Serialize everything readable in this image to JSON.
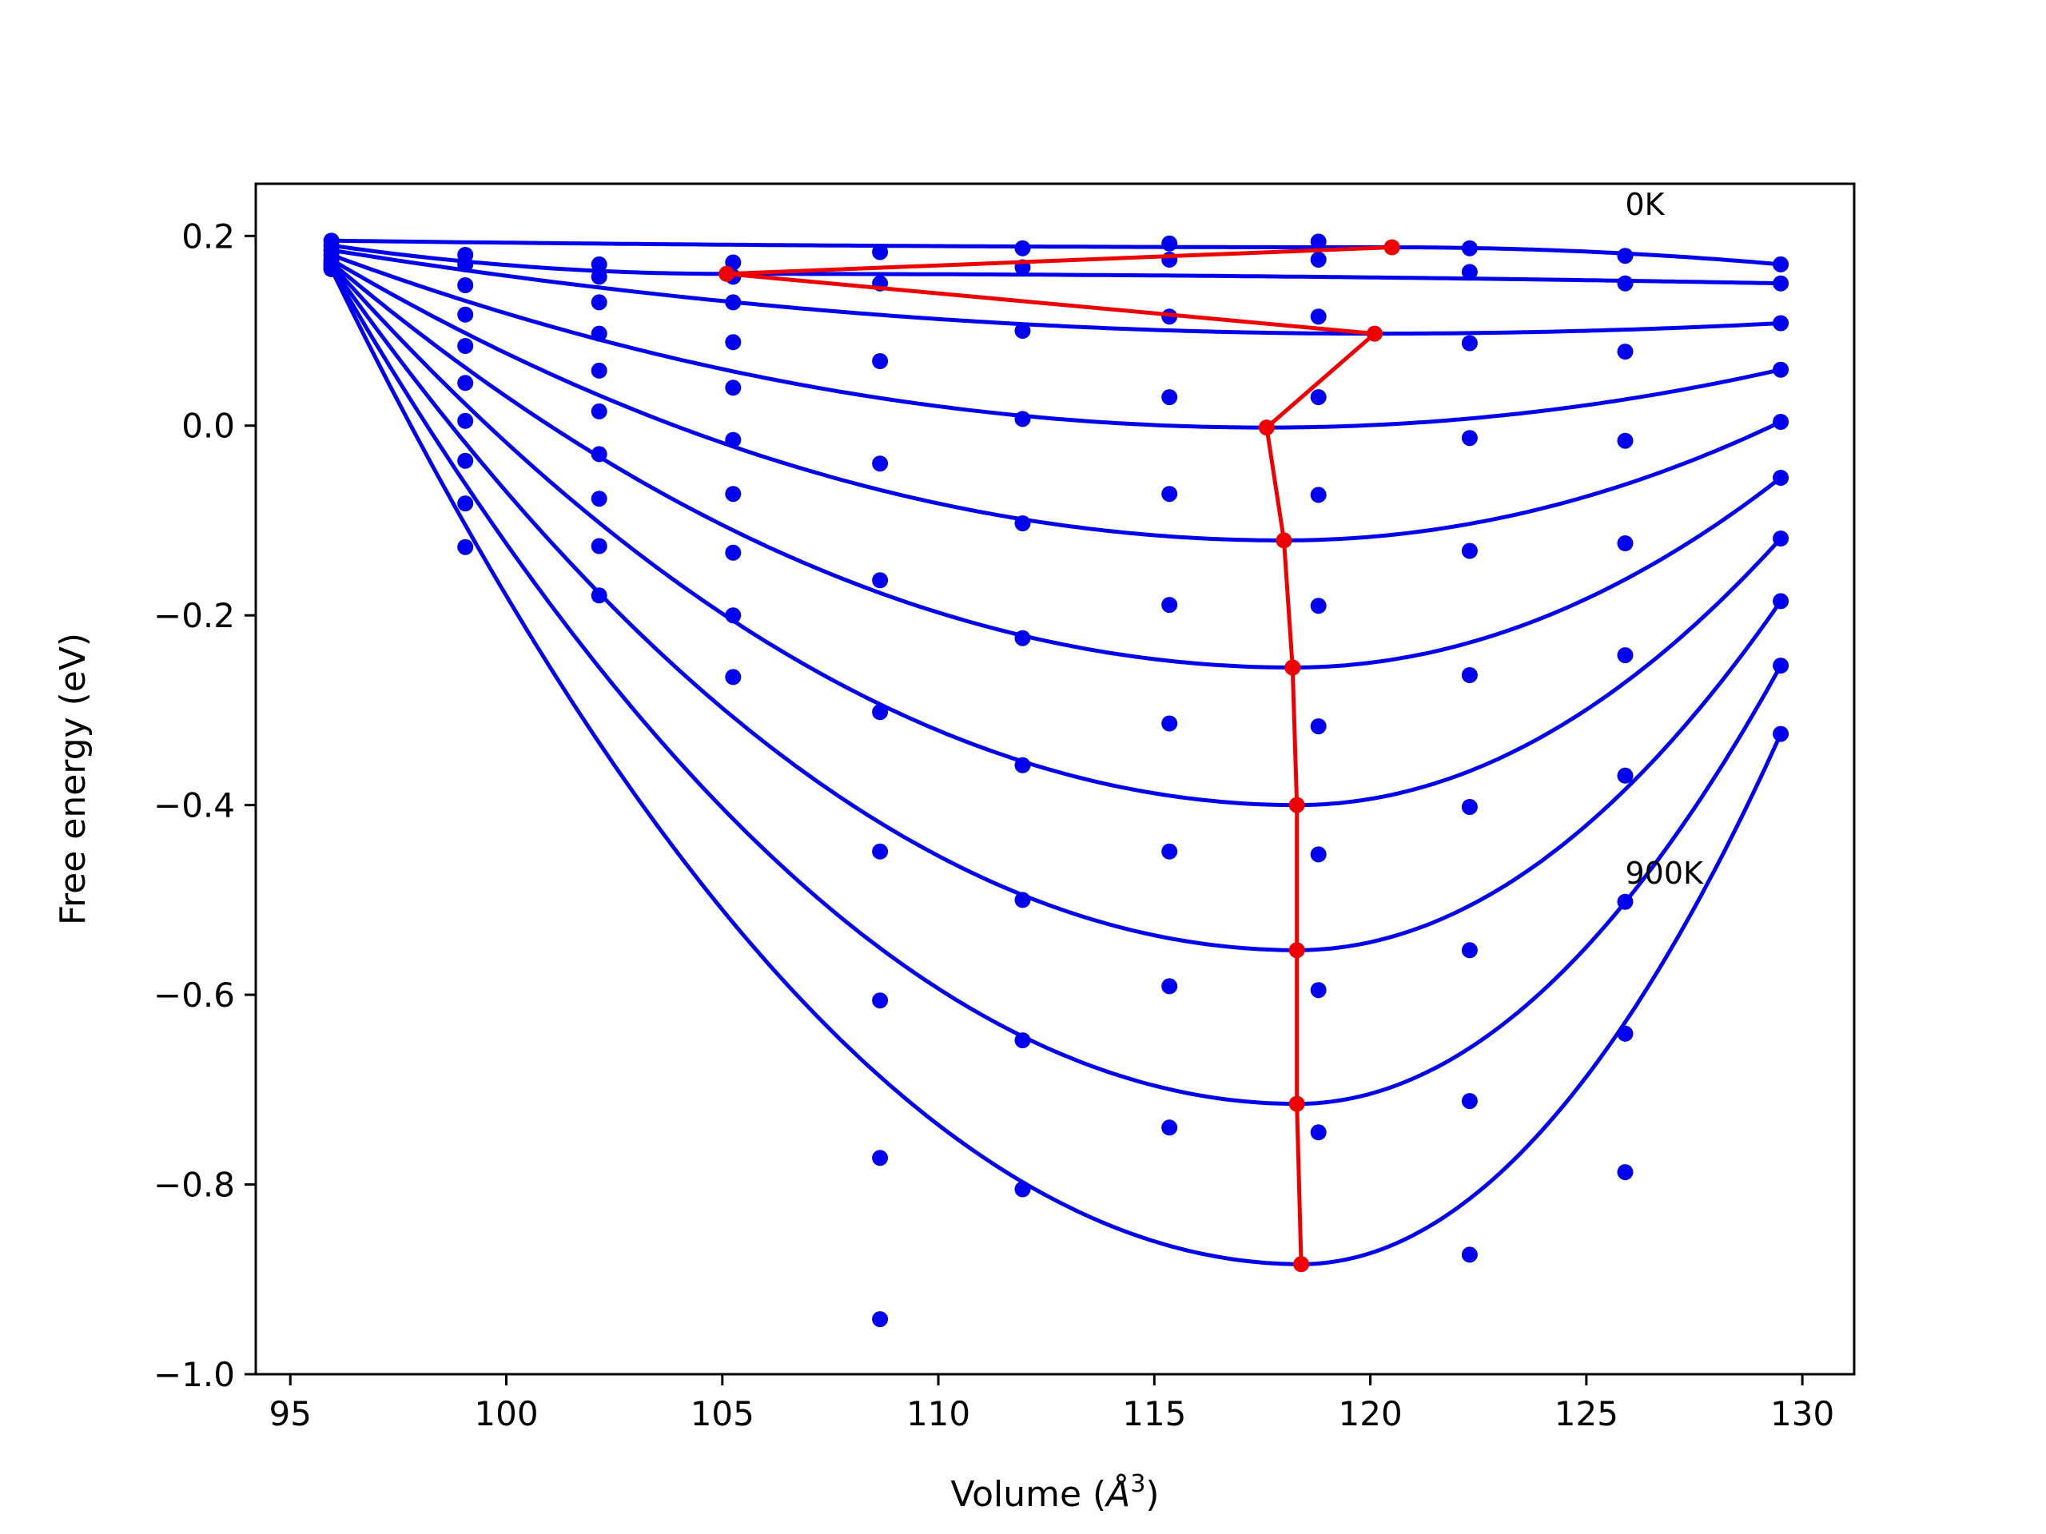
{
  "chart_data": {
    "type": "line",
    "title": "",
    "xlabel": "Volume (Å³)",
    "xlabel_main": "Volume (",
    "xlabel_sym": "Å",
    "xlabel_sup": "3",
    "xlabel_close": ")",
    "ylabel": "Free energy (eV)",
    "xlim": [
      94.2,
      131.2
    ],
    "ylim": [
      -1.0,
      0.255
    ],
    "xticks": [
      95,
      100,
      105,
      110,
      115,
      120,
      125,
      130
    ],
    "xtick_labels": [
      "95",
      "100",
      "105",
      "110",
      "115",
      "120",
      "125",
      "130"
    ],
    "yticks": [
      0.2,
      0.0,
      -0.2,
      -0.4,
      -0.6,
      -0.8,
      -1.0
    ],
    "ytick_labels": [
      "0.2",
      "0.0",
      "−0.2",
      "−0.4",
      "−0.6",
      "−0.8",
      "−1.0"
    ],
    "grid": false,
    "annotations": [
      {
        "text": "0K",
        "x": 125.9,
        "y": 0.222
      },
      {
        "text": "900K",
        "x": 125.9,
        "y": -0.483
      }
    ],
    "volumes": [
      95.95,
      99.05,
      102.15,
      105.25,
      108.65,
      111.95,
      115.35,
      118.8,
      122.3,
      125.9,
      129.5
    ],
    "series": [
      {
        "values": [
          0.195,
          0.18,
          0.17,
          0.172,
          0.183,
          0.187,
          0.192,
          0.194,
          0.187,
          0.179,
          0.17
        ]
      },
      {
        "values": [
          0.19,
          0.17,
          0.157,
          0.157,
          0.15,
          0.167,
          0.175,
          0.175,
          0.162,
          0.15,
          0.15
        ]
      },
      {
        "values": [
          0.185,
          0.148,
          0.13,
          0.13,
          0.068,
          0.1,
          0.115,
          0.115,
          0.087,
          0.078,
          0.108
        ]
      },
      {
        "values": [
          0.18,
          0.117,
          0.097,
          0.088,
          -0.04,
          0.007,
          0.03,
          0.03,
          -0.013,
          -0.016,
          0.059
        ]
      },
      {
        "values": [
          0.175,
          0.084,
          0.058,
          0.04,
          -0.163,
          -0.103,
          -0.072,
          -0.073,
          -0.132,
          -0.124,
          0.004
        ]
      },
      {
        "values": [
          0.172,
          0.045,
          0.015,
          -0.015,
          -0.302,
          -0.224,
          -0.189,
          -0.19,
          -0.263,
          -0.242,
          -0.055
        ]
      },
      {
        "values": [
          0.17,
          0.005,
          -0.03,
          -0.072,
          -0.449,
          -0.358,
          -0.314,
          -0.317,
          -0.402,
          -0.369,
          -0.119
        ]
      },
      {
        "values": [
          0.168,
          -0.037,
          -0.077,
          -0.134,
          -0.606,
          -0.5,
          -0.449,
          -0.452,
          -0.553,
          -0.502,
          -0.185
        ]
      },
      {
        "values": [
          0.166,
          -0.082,
          -0.127,
          -0.2,
          -0.772,
          -0.648,
          -0.591,
          -0.595,
          -0.712,
          -0.641,
          -0.253
        ]
      },
      {
        "values": [
          0.165,
          -0.128,
          -0.179,
          -0.265,
          -0.942,
          -0.805,
          -0.74,
          -0.745,
          -0.874,
          -0.787,
          -0.325
        ]
      }
    ],
    "minima": {
      "x": [
        120.5,
        105.1,
        120.1,
        117.6,
        118.0,
        118.2,
        118.3,
        118.3,
        118.3,
        118.4
      ],
      "y": [
        0.188,
        0.16,
        0.097,
        -0.002,
        -0.121,
        -0.255,
        -0.4,
        -0.553,
        -0.715,
        -0.884
      ]
    },
    "colors": {
      "curves": "#0000ee",
      "points": "#0000ee",
      "minima": "#ee0000",
      "axes": "#000000"
    }
  }
}
